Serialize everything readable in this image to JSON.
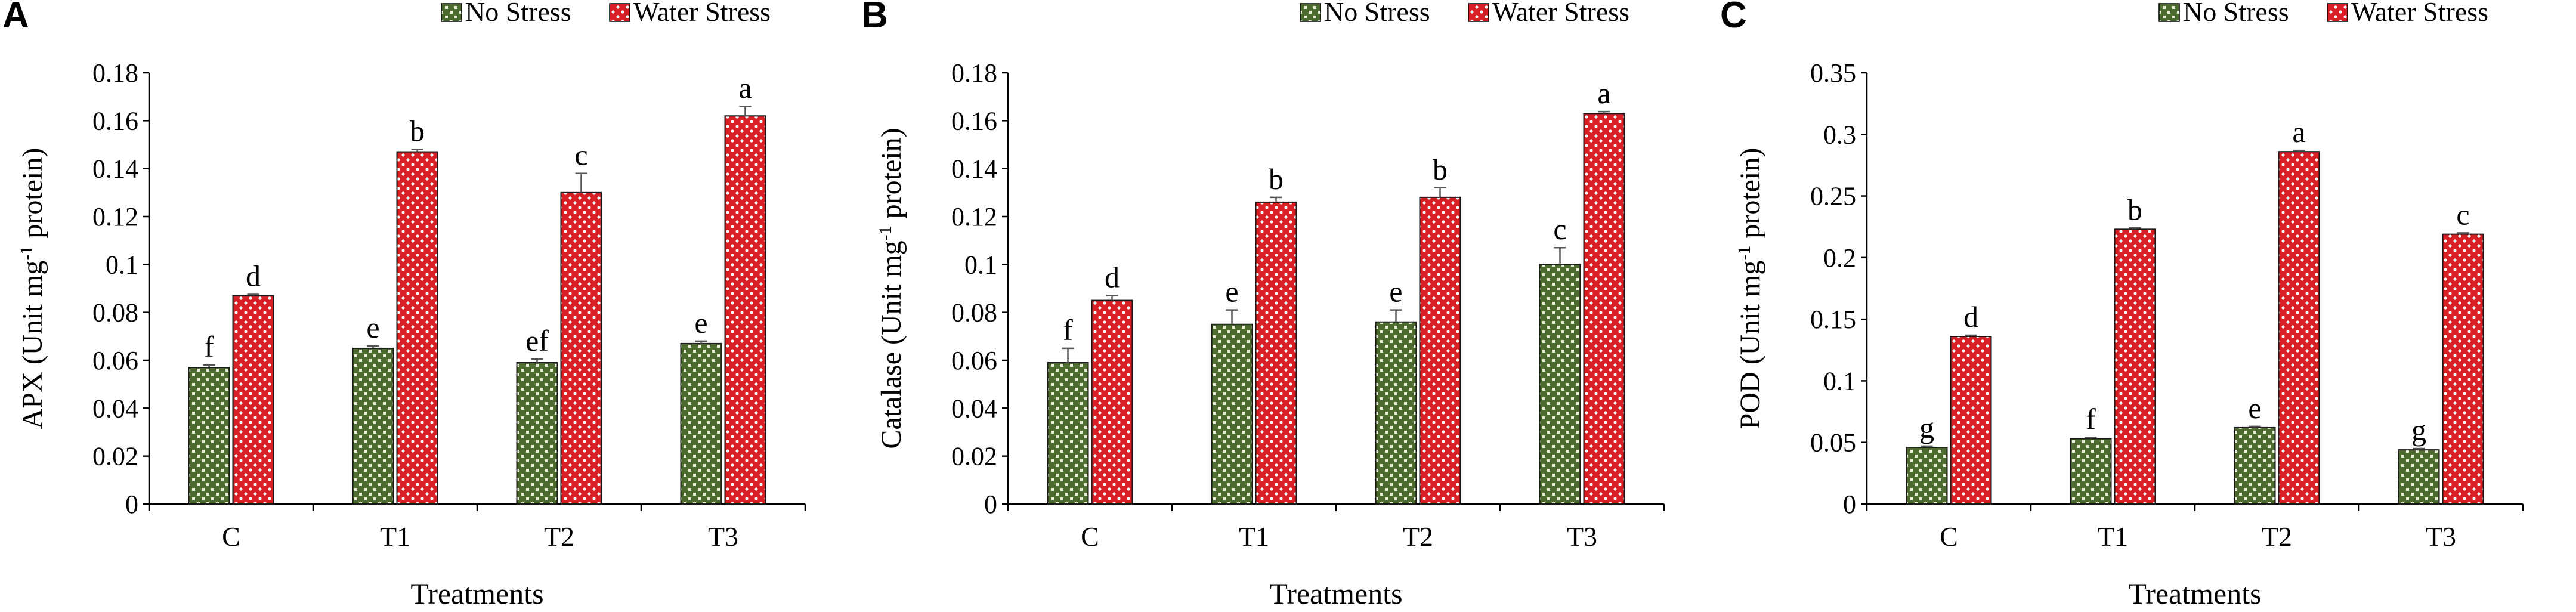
{
  "colors": {
    "no_stress_fill": "#4d6b2e",
    "no_stress_dots": "#e6ecd7",
    "water_stress_fill": "#d81f26",
    "water_stress_dots": "#ffffff",
    "axis": "#000000"
  },
  "legend": {
    "no_stress": "No Stress",
    "water_stress": "Water Stress"
  },
  "chart_data": [
    {
      "panel_label": "A",
      "type": "bar",
      "title": "",
      "xlabel": "Treatments",
      "ylabel_main": "APX (Unit mg",
      "ylabel_sup": "-1",
      "ylabel_tail": " protein)",
      "categories": [
        "C",
        "T1",
        "T2",
        "T3"
      ],
      "ylim": [
        0,
        0.18
      ],
      "yticks": [
        0,
        0.02,
        0.04,
        0.06,
        0.08,
        0.1,
        0.12,
        0.14,
        0.16,
        0.18
      ],
      "ytick_labels": [
        "0",
        "0.02",
        "0.04",
        "0.06",
        "0.08",
        "0.1",
        "0.12",
        "0.14",
        "0.16",
        "0.18"
      ],
      "series": [
        {
          "name": "No Stress",
          "values": [
            0.057,
            0.065,
            0.059,
            0.067
          ],
          "errors": [
            0.001,
            0.001,
            0.0015,
            0.001
          ],
          "letters": [
            "f",
            "e",
            "ef",
            "e"
          ]
        },
        {
          "name": "Water Stress",
          "values": [
            0.087,
            0.147,
            0.13,
            0.162
          ],
          "errors": [
            0.0005,
            0.001,
            0.008,
            0.004
          ],
          "letters": [
            "d",
            "b",
            "c",
            "a"
          ]
        }
      ]
    },
    {
      "panel_label": "B",
      "type": "bar",
      "title": "",
      "xlabel": "Treatments",
      "ylabel_main": "Catalase (Unit mg",
      "ylabel_sup": "-1",
      "ylabel_tail": " protein)",
      "categories": [
        "C",
        "T1",
        "T2",
        "T3"
      ],
      "ylim": [
        0,
        0.18
      ],
      "yticks": [
        0,
        0.02,
        0.04,
        0.06,
        0.08,
        0.1,
        0.12,
        0.14,
        0.16,
        0.18
      ],
      "ytick_labels": [
        "0",
        "0.02",
        "0.04",
        "0.06",
        "0.08",
        "0.1",
        "0.12",
        "0.14",
        "0.16",
        "0.18"
      ],
      "series": [
        {
          "name": "No Stress",
          "values": [
            0.059,
            0.075,
            0.076,
            0.1
          ],
          "errors": [
            0.006,
            0.006,
            0.005,
            0.007
          ],
          "letters": [
            "f",
            "e",
            "e",
            "c"
          ]
        },
        {
          "name": "Water Stress",
          "values": [
            0.085,
            0.126,
            0.128,
            0.163
          ],
          "errors": [
            0.002,
            0.002,
            0.004,
            0.0008
          ],
          "letters": [
            "d",
            "b",
            "b",
            "a"
          ]
        }
      ]
    },
    {
      "panel_label": "C",
      "type": "bar",
      "title": "",
      "xlabel": "Treatments",
      "ylabel_main": "POD (Unit mg",
      "ylabel_sup": "-1",
      "ylabel_tail": " protein)",
      "categories": [
        "C",
        "T1",
        "T2",
        "T3"
      ],
      "ylim": [
        0,
        0.35
      ],
      "yticks": [
        0,
        0.05,
        0.1,
        0.15,
        0.2,
        0.25,
        0.3,
        0.35
      ],
      "ytick_labels": [
        "0",
        "0.05",
        "0.1",
        "0.15",
        "0.2",
        "0.25",
        "0.3",
        "0.35"
      ],
      "series": [
        {
          "name": "No Stress",
          "values": [
            0.046,
            0.053,
            0.062,
            0.044
          ],
          "errors": [
            0.001,
            0.001,
            0.001,
            0.001
          ],
          "letters": [
            "g",
            "f",
            "e",
            "g"
          ]
        },
        {
          "name": "Water Stress",
          "values": [
            0.136,
            0.223,
            0.286,
            0.219
          ],
          "errors": [
            0.001,
            0.001,
            0.001,
            0.001
          ],
          "letters": [
            "d",
            "b",
            "a",
            "c"
          ]
        }
      ]
    }
  ]
}
